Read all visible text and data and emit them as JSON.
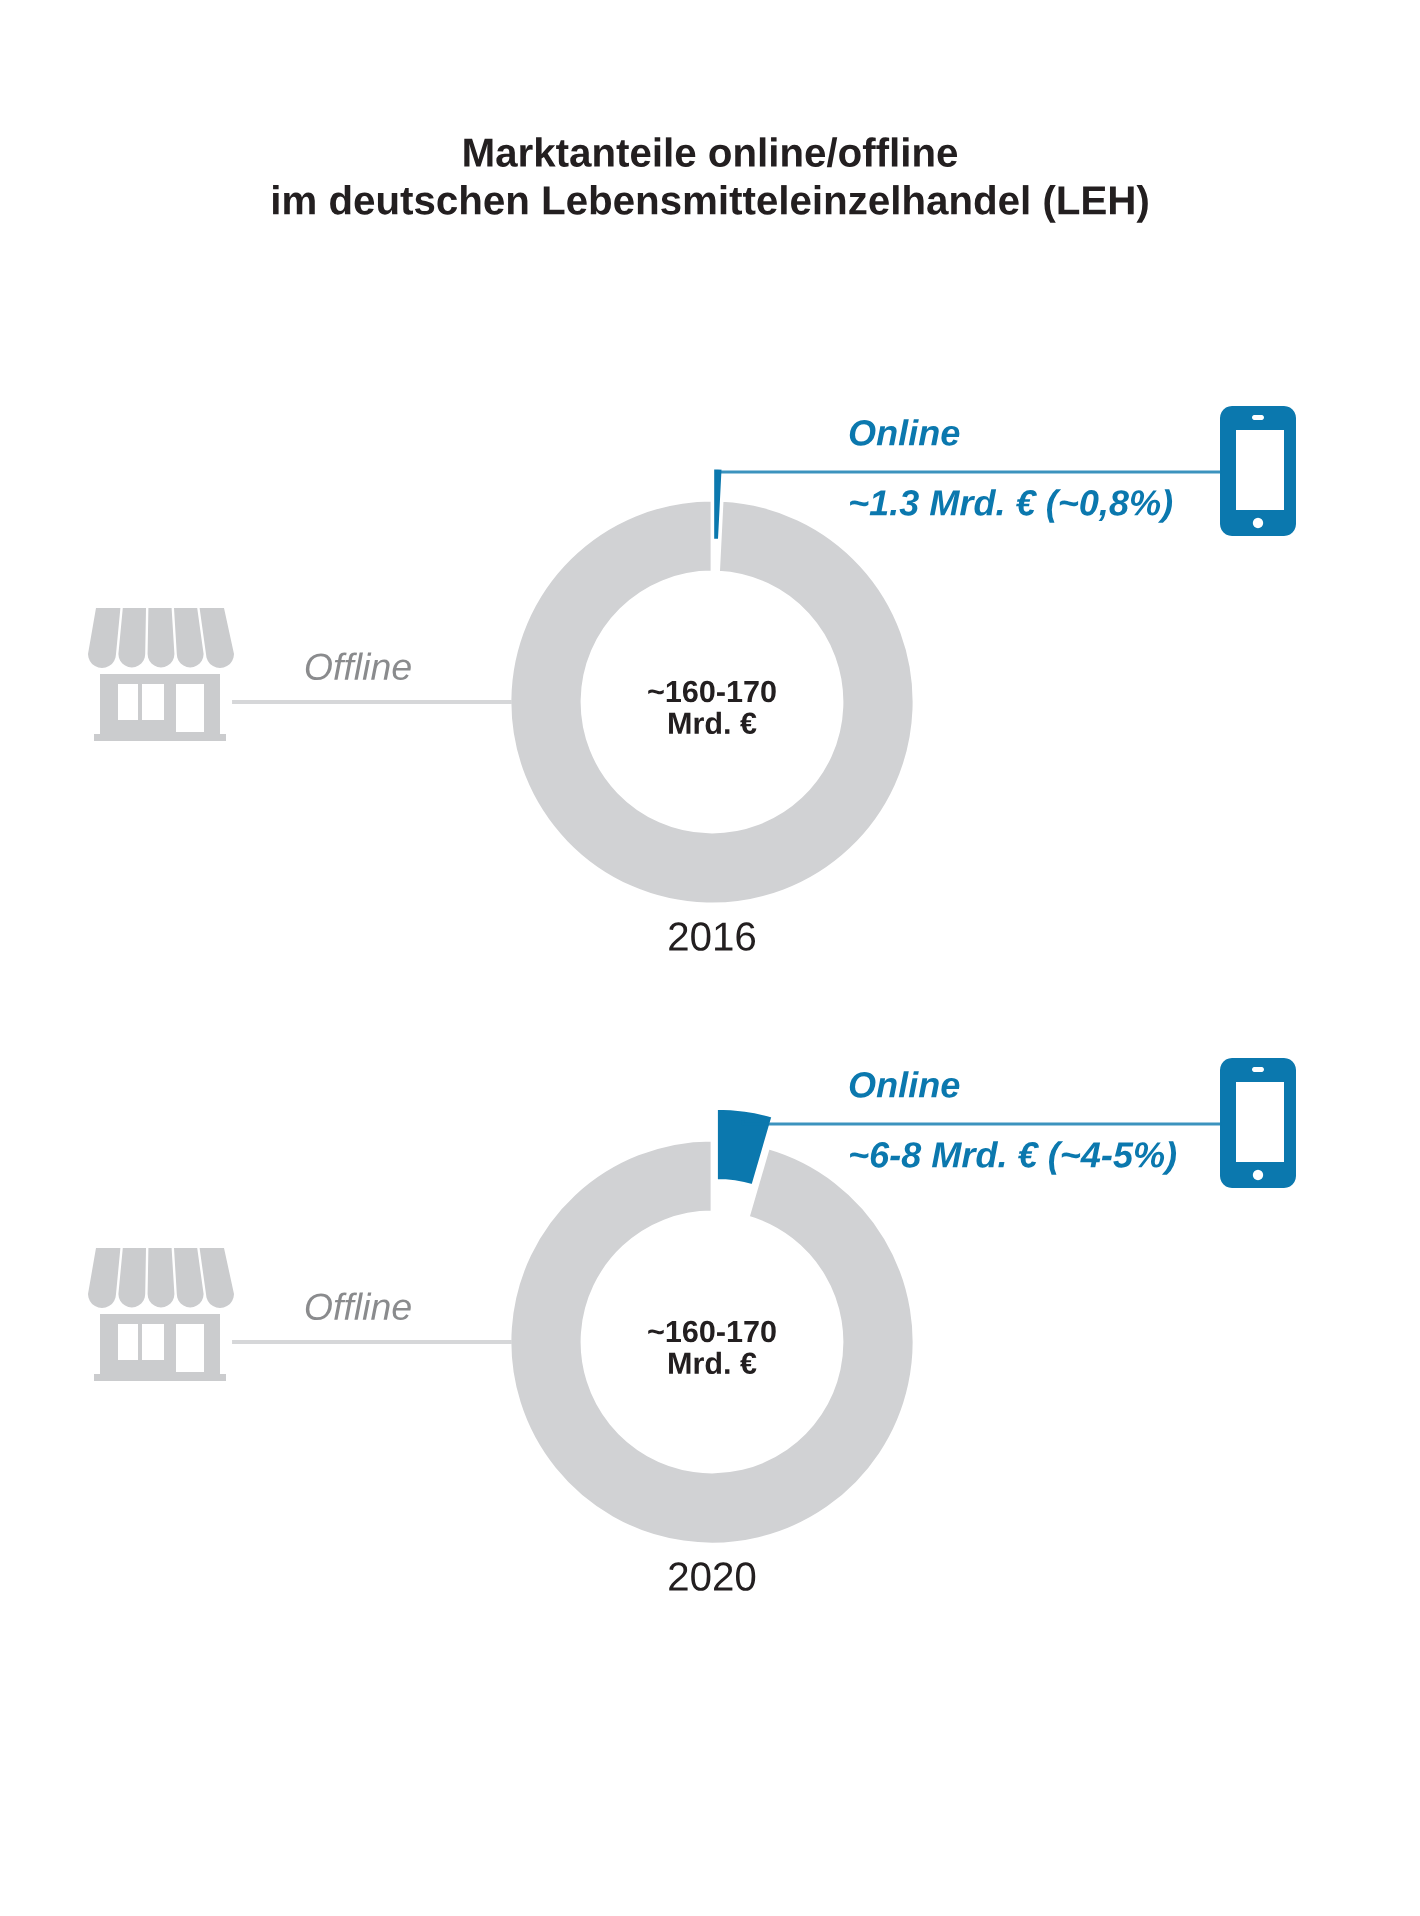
{
  "chart_data": [
    {
      "type": "donut",
      "title": "Marktanteile online/offline\nim deutschen Lebensmitteleinzelhandel (LEH)",
      "xlabel": "2016",
      "categories": [
        "Online",
        "Offline"
      ],
      "values": [
        0.8,
        99.2
      ],
      "colors": [
        "#0b78ae",
        "#d1d2d4"
      ],
      "value_labels": [
        "~1.3 Mrd. € (~0,8%)",
        null
      ],
      "annotations": [
        "~160-170\nMrd. €"
      ]
    },
    {
      "type": "donut",
      "xlabel": "2020",
      "categories": [
        "Online",
        "Offline"
      ],
      "values": [
        4.5,
        95.5
      ],
      "colors": [
        "#0b78ae",
        "#d1d2d4"
      ],
      "value_labels": [
        "~6-8 Mrd. € (~4-5%)",
        null
      ],
      "annotations": [
        "~160-170\nMrd. €"
      ]
    }
  ]
}
